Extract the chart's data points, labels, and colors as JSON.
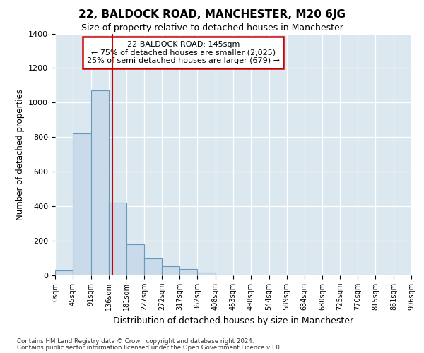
{
  "title": "22, BALDOCK ROAD, MANCHESTER, M20 6JG",
  "subtitle": "Size of property relative to detached houses in Manchester",
  "xlabel": "Distribution of detached houses by size in Manchester",
  "ylabel": "Number of detached properties",
  "bar_values": [
    27,
    820,
    1070,
    420,
    180,
    100,
    55,
    37,
    15,
    5,
    2,
    0,
    0,
    0,
    0,
    0,
    0,
    0,
    0,
    0
  ],
  "bin_edges": [
    0,
    45,
    91,
    136,
    181,
    227,
    272,
    317,
    362,
    408,
    453,
    498,
    544,
    589,
    634,
    680,
    725,
    770,
    815,
    861,
    906
  ],
  "tick_labels": [
    "0sqm",
    "45sqm",
    "91sqm",
    "136sqm",
    "181sqm",
    "227sqm",
    "272sqm",
    "317sqm",
    "362sqm",
    "408sqm",
    "453sqm",
    "498sqm",
    "544sqm",
    "589sqm",
    "634sqm",
    "680sqm",
    "725sqm",
    "770sqm",
    "815sqm",
    "861sqm",
    "906sqm"
  ],
  "bar_color": "#c9daea",
  "bar_edgecolor": "#6699bb",
  "vline_x": 145,
  "vline_color": "#cc0000",
  "ylim": [
    0,
    1400
  ],
  "yticks": [
    0,
    200,
    400,
    600,
    800,
    1000,
    1200,
    1400
  ],
  "annotation_line1": "22 BALDOCK ROAD: 145sqm",
  "annotation_line2": "← 75% of detached houses are smaller (2,025)",
  "annotation_line3": "25% of semi-detached houses are larger (679) →",
  "annotation_box_color": "#cc0000",
  "footer_line1": "Contains HM Land Registry data © Crown copyright and database right 2024.",
  "footer_line2": "Contains public sector information licensed under the Open Government Licence v3.0.",
  "fig_bg_color": "#ffffff",
  "plot_bg_color": "#dce8f0"
}
